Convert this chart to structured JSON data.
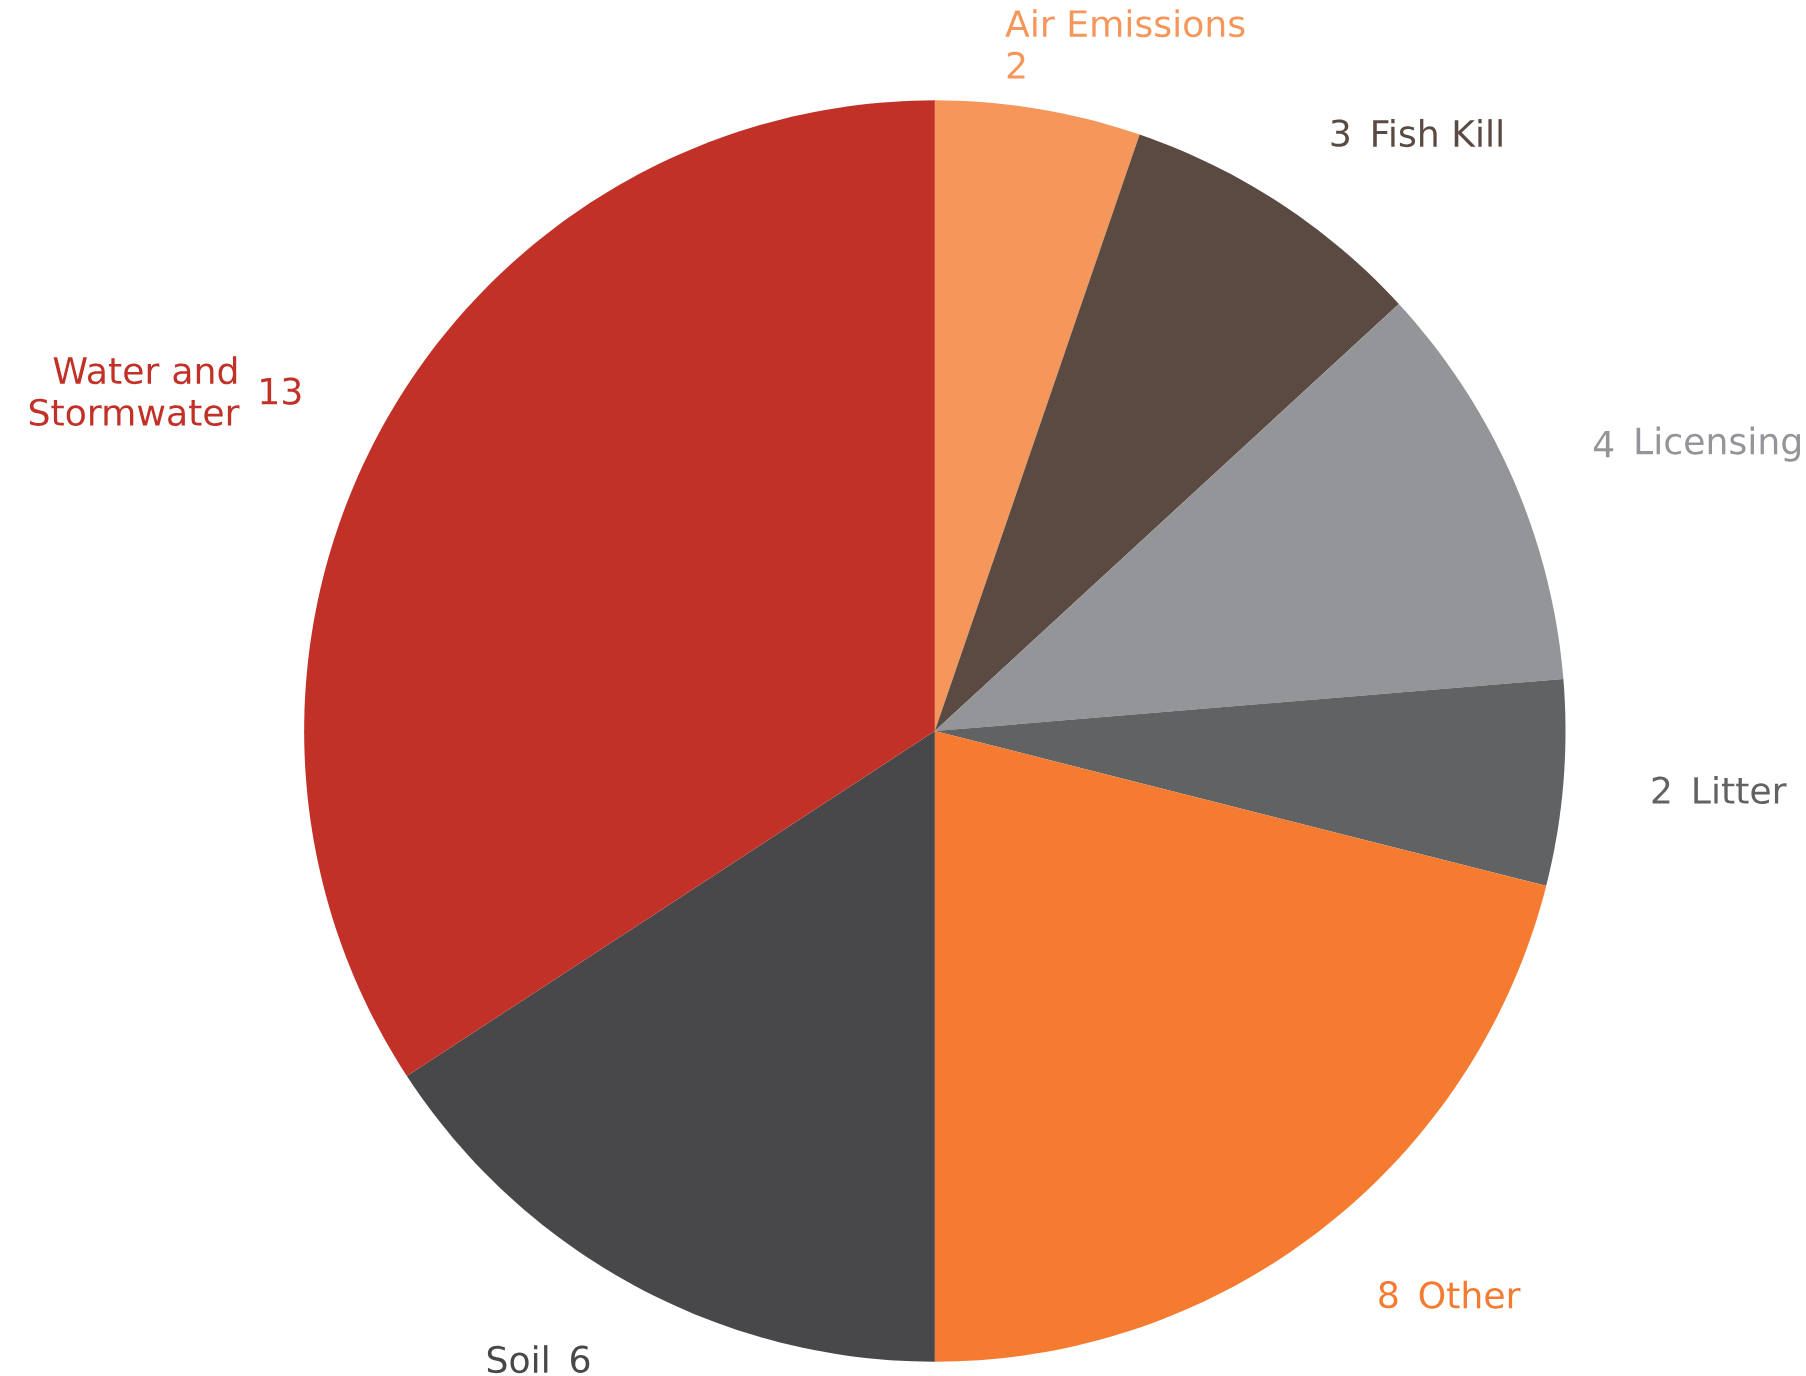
{
  "chart_data": {
    "type": "pie",
    "categories": [
      "Air Emissions",
      "Fish Kill",
      "Licensing",
      "Litter",
      "Other",
      "Soil",
      "Water and Stormwater"
    ],
    "values": [
      2,
      3,
      4,
      2,
      8,
      6,
      13
    ],
    "colors": [
      "#f5965a",
      "#5a4a42",
      "#939598",
      "#616264",
      "#f47b30",
      "#48484a",
      "#c23127"
    ],
    "data_labels": true
  }
}
